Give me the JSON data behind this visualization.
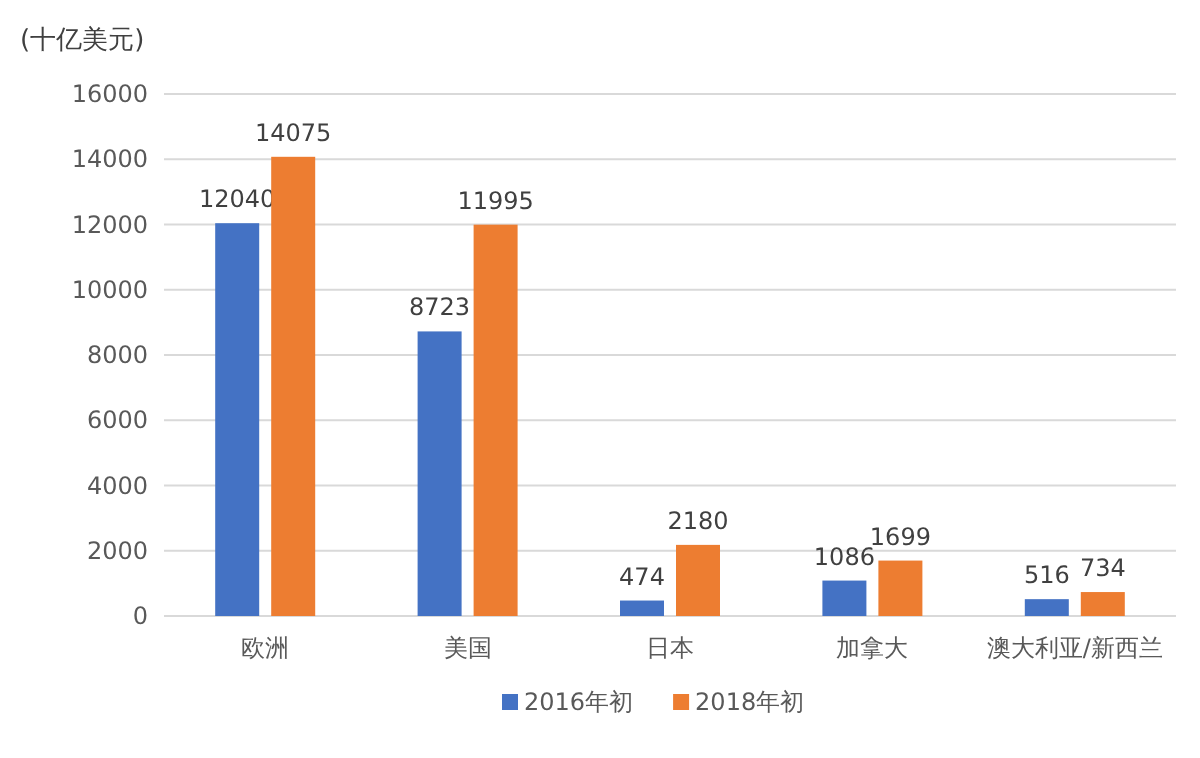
{
  "chart_data": {
    "type": "bar",
    "ylabel": "(十亿美元)",
    "categories": [
      "欧洲",
      "美国",
      "日本",
      "加拿大",
      "澳大利亚/新西兰"
    ],
    "series": [
      {
        "name": "2016年初",
        "color": "#4472c4",
        "values": [
          12040,
          8723,
          474,
          1086,
          516
        ]
      },
      {
        "name": "2018年初",
        "color": "#ed7d31",
        "values": [
          14075,
          11995,
          2180,
          1699,
          734
        ]
      }
    ],
    "ylim": [
      0,
      16000
    ],
    "yticks": [
      0,
      2000,
      4000,
      6000,
      8000,
      10000,
      12000,
      14000,
      16000
    ],
    "grid": "y",
    "legend": "bottom",
    "data_labels": true
  }
}
